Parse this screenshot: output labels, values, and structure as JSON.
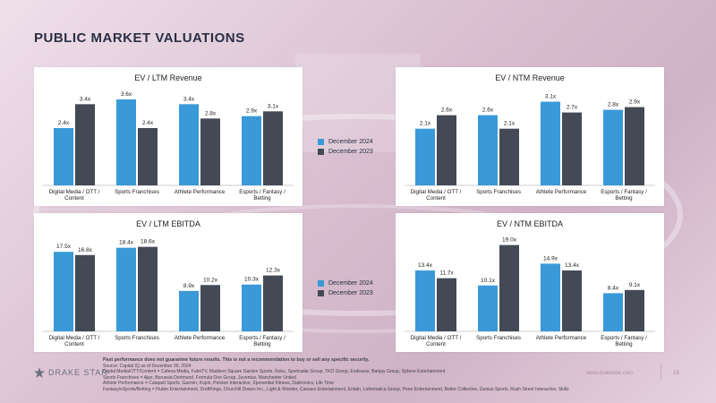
{
  "page": {
    "title": "PUBLIC MARKET VALUATIONS",
    "brand": "DRAKE STAR",
    "website": "www.drakestar.com",
    "page_number": "19"
  },
  "colors": {
    "series_2024": "#3a99d8",
    "series_2023": "#434a55",
    "title": "#2a2f45"
  },
  "legend_top": {
    "items": [
      "December 2024",
      "December 2023"
    ]
  },
  "legend_bottom": {
    "items": [
      "December 2024",
      "December 2023"
    ]
  },
  "chart_data": [
    {
      "type": "bar",
      "title": "EV / LTM Revenue",
      "categories": [
        "Digital Media / OTT / Content",
        "Sports Franchises",
        "Athlete Performance",
        "Esports / Fantasy / Betting"
      ],
      "series": [
        {
          "name": "December 2024",
          "values": [
            2.4,
            3.6,
            3.4,
            2.9
          ],
          "labels": [
            "2.4x",
            "3.6x",
            "3.4x",
            "2.9x"
          ]
        },
        {
          "name": "December 2023",
          "values": [
            3.4,
            2.4,
            2.8,
            3.1
          ],
          "labels": [
            "3.4x",
            "2.4x",
            "2.8x",
            "3.1x"
          ]
        }
      ],
      "ylim": [
        0,
        3.9
      ]
    },
    {
      "type": "bar",
      "title": "EV / NTM Revenue",
      "categories": [
        "Digital Media / OTT / Content",
        "Sports Franchises",
        "Athlete Performance",
        "Esports / Fantasy / Betting"
      ],
      "series": [
        {
          "name": "December 2024",
          "values": [
            2.1,
            2.6,
            3.1,
            2.8
          ],
          "labels": [
            "2.1x",
            "2.6x",
            "3.1x",
            "2.8x"
          ]
        },
        {
          "name": "December 2023",
          "values": [
            2.6,
            2.1,
            2.7,
            2.9
          ],
          "labels": [
            "2.6x",
            "2.1x",
            "2.7x",
            "2.9x"
          ]
        }
      ],
      "ylim": [
        0,
        3.45
      ]
    },
    {
      "type": "bar",
      "title": "EV / LTM EBITDA",
      "categories": [
        "Digital Media / OTT / Content",
        "Sports Franchises",
        "Athlete Performance",
        "Esports / Fantasy / Betting"
      ],
      "series": [
        {
          "name": "December 2024",
          "values": [
            17.5,
            18.4,
            8.9,
            10.3
          ],
          "labels": [
            "17.5x",
            "18.4x",
            "8.9x",
            "10.3x"
          ]
        },
        {
          "name": "December 2023",
          "values": [
            16.8,
            18.6,
            10.2,
            12.3
          ],
          "labels": [
            "16.8x",
            "18.6x",
            "10.2x",
            "12.3x"
          ]
        }
      ],
      "ylim": [
        0,
        20.5
      ]
    },
    {
      "type": "bar",
      "title": "EV / NTM EBITDA",
      "categories": [
        "Digital Media / OTT / Content",
        "Sports Franchises",
        "Athlete Performance",
        "Esports / Fantasy / Betting"
      ],
      "series": [
        {
          "name": "December 2024",
          "values": [
            13.4,
            10.1,
            14.9,
            8.4
          ],
          "labels": [
            "13.4x",
            "10.1x",
            "14.9x",
            "8.4x"
          ]
        },
        {
          "name": "December 2023",
          "values": [
            11.7,
            19.0,
            13.4,
            9.1
          ],
          "labels": [
            "11.7x",
            "19.0x",
            "13.4x",
            "9.1x"
          ]
        }
      ],
      "ylim": [
        0,
        20.5
      ]
    }
  ],
  "footer": {
    "disclaimer": "Past performance does not guarantee future results. This is not a recommendation to buy or sell any specific security.",
    "source": "Source: Capital IQ as of December 30, 2024",
    "lines": [
      "Digital Media/OTT/Content = Cafena Media, FuboTV, Madison Square Garden Sports, Roku, Sportradar Group, TKO Group, Endeavor, Banjay Group, Sphere Entertainment",
      "Sports Franchises = Ajax, Borussia Dortmund, Formula One Group, Juventus, Manchester United",
      "Athlete Performance = Catapult Sports, Garmin, Kopin, Peloton Interactive, Xponential Fitness, Daktronics, Life Time",
      "Fantasy/eSports/Betting = Flutter Entertainment, DraftKings, Churchill Downs Inc., Light & Wonder, Caesars Entertainment, Entain, Lottomatica Group, Penn Entertainment, Better Collective, Genius Sports, Rush Street Interactive, Skillz"
    ]
  }
}
